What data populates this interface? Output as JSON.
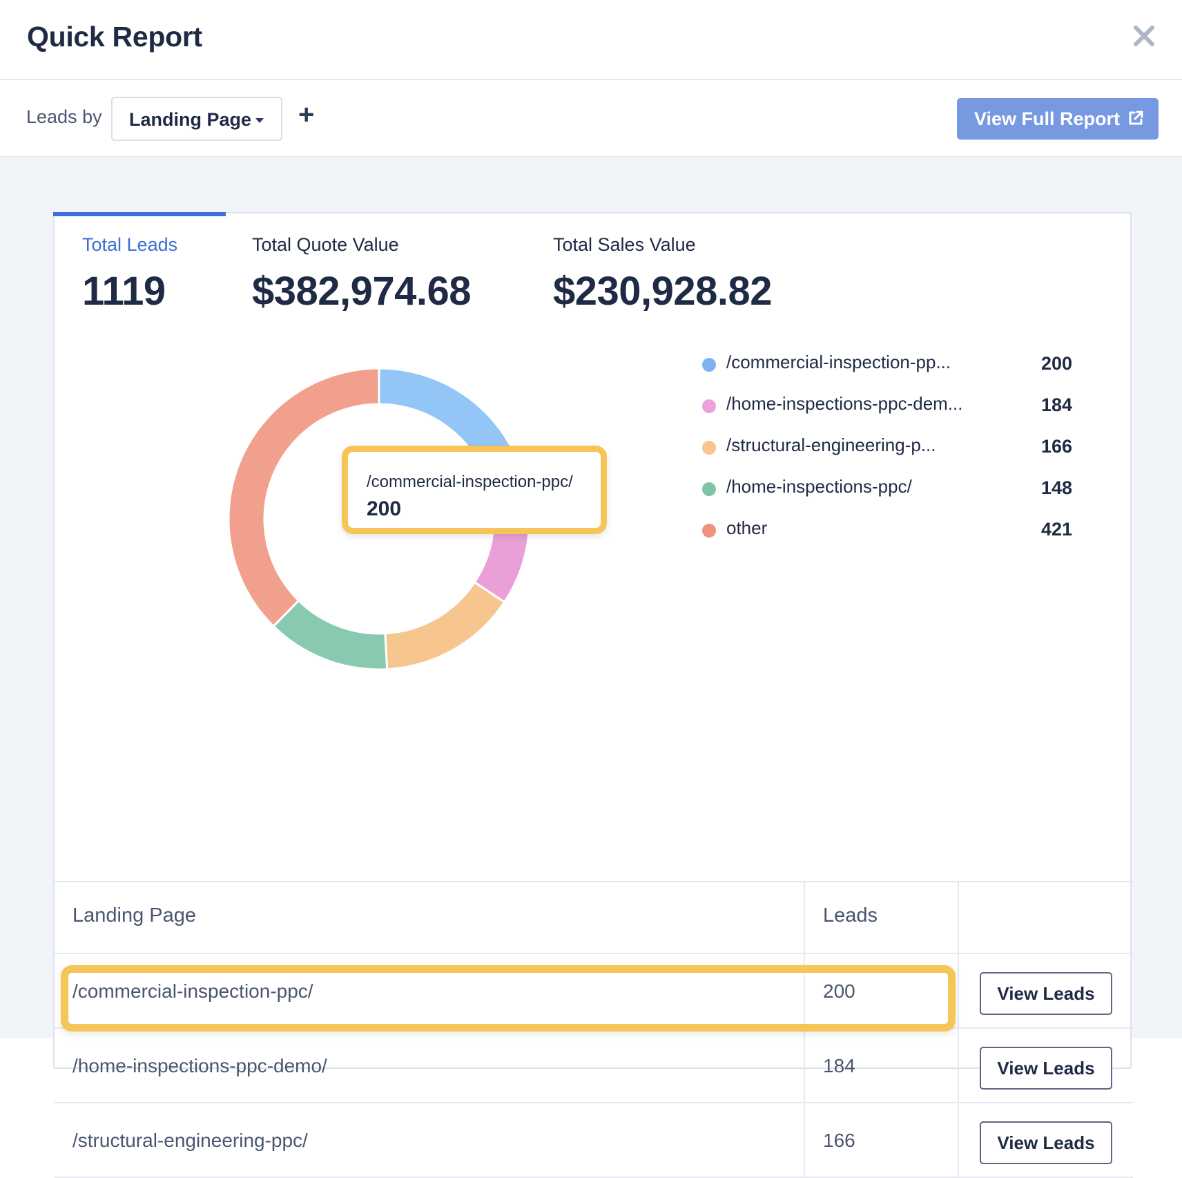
{
  "modal": {
    "title": "Quick Report",
    "close_icon": "close-icon"
  },
  "toolbar": {
    "leads_by_label": "Leads by",
    "group_by_selected": "Landing Page",
    "add_label": "+",
    "full_report_label": "View Full Report",
    "full_report_icon": "external-link-icon"
  },
  "metrics": [
    {
      "label": "Total Leads",
      "value": "1119",
      "active": true
    },
    {
      "label": "Total Quote Value",
      "value": "$382,974.68",
      "active": false
    },
    {
      "label": "Total Sales Value",
      "value": "$230,928.82",
      "active": false
    }
  ],
  "colors": {
    "accent": "#3e6fd8",
    "button_primary": "#7699e2",
    "highlight": "#f6c557",
    "blue": "#93c5f7",
    "pink": "#e9a0d6",
    "orange": "#f7c68f",
    "green": "#88c9b0",
    "salmon": "#f0a08c"
  },
  "tooltip": {
    "label": "/commercial-inspection-ppc/",
    "value": "200"
  },
  "chart_data": {
    "type": "pie",
    "series": [
      {
        "name": "/commercial-inspection-pp...",
        "value": 200,
        "color": "#93c5f7"
      },
      {
        "name": "/home-inspections-ppc-dem...",
        "value": 184,
        "color": "#e9a0d6"
      },
      {
        "name": "/structural-engineering-p...",
        "value": 166,
        "color": "#f7c68f"
      },
      {
        "name": "/home-inspections-ppc/",
        "value": 148,
        "color": "#88c9b0"
      },
      {
        "name": "other",
        "value": 421,
        "color": "#f0a08c"
      }
    ],
    "legend": "right"
  },
  "table": {
    "headers": [
      "Landing Page",
      "Leads",
      ""
    ],
    "rows": [
      {
        "page": "/commercial-inspection-ppc/",
        "leads": "200",
        "action": "View Leads"
      },
      {
        "page": "/home-inspections-ppc-demo/",
        "leads": "184",
        "action": "View Leads"
      },
      {
        "page": "/structural-engineering-ppc/",
        "leads": "166",
        "action": "View Leads"
      }
    ]
  }
}
